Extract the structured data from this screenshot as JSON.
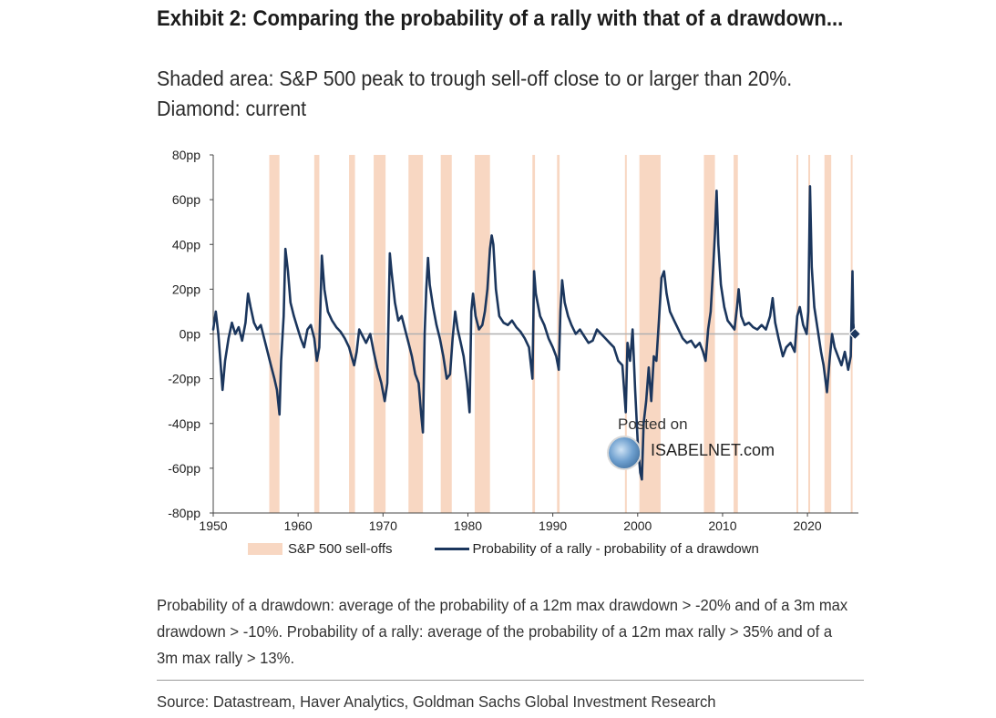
{
  "title": "Exhibit 2: Comparing the probability of a rally with that of a drawdown...",
  "subtitle": "Shaded area: S&P 500 peak to trough sell-off close to or larger than 20%. Diamond: current",
  "note": "Probability of a drawdown: average of the probability of a 12m max drawdown > -20% and of a 3m max drawdown > -10%. Probability of a rally: average of the probability of a 12m max rally > 35% and of a 3m max rally > 13%.",
  "source": "Source: Datastream, Haver Analytics, Goldman Sachs Global Investment Research",
  "watermark": {
    "posted": "Posted on",
    "site": "ISABELNET.com"
  },
  "colors": {
    "line": "#1b365d",
    "shade": "#f8d7c2",
    "zero_line": "#b0b0b0",
    "axis": "#444444"
  },
  "chart_data": {
    "type": "line",
    "title": "",
    "xlabel": "",
    "ylabel": "",
    "xlim": [
      1950,
      2026
    ],
    "ylim": [
      -80,
      80
    ],
    "x_ticks": [
      1950,
      1960,
      1970,
      1980,
      1990,
      2000,
      2010,
      2020
    ],
    "x_tick_labels": [
      "1950",
      "1960",
      "1970",
      "1980",
      "1990",
      "2000",
      "2010",
      "2020"
    ],
    "y_ticks": [
      -80,
      -60,
      -40,
      -20,
      0,
      20,
      40,
      60,
      80
    ],
    "y_tick_labels": [
      "-80pp",
      "-60pp",
      "-40pp",
      "-20pp",
      "0pp",
      "20pp",
      "40pp",
      "60pp",
      "80pp"
    ],
    "grid": false,
    "legend_position": "bottom",
    "legend": [
      "S&P 500 sell-offs",
      "Probability of a rally - probability of a drawdown"
    ],
    "shaded_periods": [
      [
        1956.6,
        1957.8
      ],
      [
        1961.9,
        1962.5
      ],
      [
        1966.0,
        1966.7
      ],
      [
        1968.9,
        1970.3
      ],
      [
        1973.0,
        1974.7
      ],
      [
        1976.8,
        1978.1
      ],
      [
        1980.8,
        1982.6
      ],
      [
        1987.6,
        1987.9
      ],
      [
        1990.5,
        1990.8
      ],
      [
        1998.5,
        1998.7
      ],
      [
        2000.2,
        2002.7
      ],
      [
        2007.8,
        2009.1
      ],
      [
        2011.3,
        2011.8
      ],
      [
        2018.7,
        2018.9
      ],
      [
        2020.1,
        2020.3
      ],
      [
        2022.0,
        2022.8
      ],
      [
        2025.1,
        2025.3
      ]
    ],
    "series": [
      {
        "name": "Probability of a rally - probability of a drawdown",
        "points": [
          [
            1950.0,
            2
          ],
          [
            1950.3,
            10
          ],
          [
            1950.6,
            0
          ],
          [
            1950.9,
            -15
          ],
          [
            1951.1,
            -25
          ],
          [
            1951.4,
            -12
          ],
          [
            1951.8,
            -2
          ],
          [
            1952.2,
            5
          ],
          [
            1952.6,
            0
          ],
          [
            1953.0,
            3
          ],
          [
            1953.4,
            -3
          ],
          [
            1953.8,
            5
          ],
          [
            1954.1,
            18
          ],
          [
            1954.4,
            12
          ],
          [
            1954.8,
            5
          ],
          [
            1955.2,
            2
          ],
          [
            1955.6,
            4
          ],
          [
            1956.0,
            -2
          ],
          [
            1956.4,
            -8
          ],
          [
            1956.8,
            -14
          ],
          [
            1957.2,
            -20
          ],
          [
            1957.5,
            -25
          ],
          [
            1957.8,
            -36
          ],
          [
            1958.0,
            -12
          ],
          [
            1958.3,
            8
          ],
          [
            1958.5,
            38
          ],
          [
            1958.8,
            28
          ],
          [
            1959.1,
            14
          ],
          [
            1959.5,
            8
          ],
          [
            1959.9,
            3
          ],
          [
            1960.3,
            -2
          ],
          [
            1960.7,
            -6
          ],
          [
            1961.1,
            2
          ],
          [
            1961.5,
            4
          ],
          [
            1961.9,
            -2
          ],
          [
            1962.2,
            -12
          ],
          [
            1962.5,
            -6
          ],
          [
            1962.8,
            35
          ],
          [
            1963.1,
            20
          ],
          [
            1963.5,
            10
          ],
          [
            1964.0,
            6
          ],
          [
            1964.5,
            3
          ],
          [
            1965.0,
            1
          ],
          [
            1965.5,
            -2
          ],
          [
            1966.0,
            -6
          ],
          [
            1966.3,
            -10
          ],
          [
            1966.6,
            -14
          ],
          [
            1966.9,
            -8
          ],
          [
            1967.2,
            2
          ],
          [
            1967.6,
            -1
          ],
          [
            1968.0,
            -4
          ],
          [
            1968.5,
            0
          ],
          [
            1968.9,
            -8
          ],
          [
            1969.3,
            -15
          ],
          [
            1969.8,
            -22
          ],
          [
            1970.2,
            -30
          ],
          [
            1970.5,
            -22
          ],
          [
            1970.8,
            36
          ],
          [
            1971.0,
            28
          ],
          [
            1971.4,
            14
          ],
          [
            1971.8,
            6
          ],
          [
            1972.2,
            8
          ],
          [
            1972.6,
            2
          ],
          [
            1973.0,
            -4
          ],
          [
            1973.4,
            -10
          ],
          [
            1973.8,
            -18
          ],
          [
            1974.2,
            -22
          ],
          [
            1974.5,
            -36
          ],
          [
            1974.7,
            -44
          ],
          [
            1974.9,
            0
          ],
          [
            1975.1,
            20
          ],
          [
            1975.3,
            34
          ],
          [
            1975.5,
            22
          ],
          [
            1975.9,
            12
          ],
          [
            1976.3,
            4
          ],
          [
            1976.7,
            -2
          ],
          [
            1977.1,
            -10
          ],
          [
            1977.5,
            -20
          ],
          [
            1977.9,
            -18
          ],
          [
            1978.2,
            -2
          ],
          [
            1978.5,
            10
          ],
          [
            1978.8,
            2
          ],
          [
            1979.1,
            -3
          ],
          [
            1979.5,
            -10
          ],
          [
            1979.9,
            -22
          ],
          [
            1980.2,
            -35
          ],
          [
            1980.4,
            10
          ],
          [
            1980.6,
            18
          ],
          [
            1980.9,
            8
          ],
          [
            1981.3,
            2
          ],
          [
            1981.7,
            4
          ],
          [
            1982.0,
            10
          ],
          [
            1982.3,
            20
          ],
          [
            1982.6,
            38
          ],
          [
            1982.8,
            44
          ],
          [
            1983.0,
            40
          ],
          [
            1983.3,
            20
          ],
          [
            1983.7,
            8
          ],
          [
            1984.2,
            5
          ],
          [
            1984.7,
            4
          ],
          [
            1985.2,
            6
          ],
          [
            1985.7,
            3
          ],
          [
            1986.2,
            1
          ],
          [
            1986.7,
            -2
          ],
          [
            1987.2,
            -6
          ],
          [
            1987.6,
            -20
          ],
          [
            1987.8,
            28
          ],
          [
            1988.0,
            18
          ],
          [
            1988.5,
            8
          ],
          [
            1989.0,
            4
          ],
          [
            1989.5,
            -2
          ],
          [
            1990.0,
            -6
          ],
          [
            1990.4,
            -10
          ],
          [
            1990.7,
            -16
          ],
          [
            1990.9,
            10
          ],
          [
            1991.1,
            24
          ],
          [
            1991.4,
            14
          ],
          [
            1991.8,
            8
          ],
          [
            1992.2,
            4
          ],
          [
            1992.7,
            0
          ],
          [
            1993.2,
            2
          ],
          [
            1993.7,
            -1
          ],
          [
            1994.2,
            -4
          ],
          [
            1994.7,
            -3
          ],
          [
            1995.2,
            2
          ],
          [
            1995.7,
            0
          ],
          [
            1996.2,
            -2
          ],
          [
            1996.7,
            -4
          ],
          [
            1997.2,
            -6
          ],
          [
            1997.7,
            -12
          ],
          [
            1998.2,
            -14
          ],
          [
            1998.6,
            -35
          ],
          [
            1998.8,
            -4
          ],
          [
            1999.1,
            -12
          ],
          [
            1999.4,
            2
          ],
          [
            1999.7,
            -25
          ],
          [
            2000.0,
            -48
          ],
          [
            2000.3,
            -62
          ],
          [
            2000.5,
            -65
          ],
          [
            2000.7,
            -40
          ],
          [
            2001.0,
            -30
          ],
          [
            2001.3,
            -15
          ],
          [
            2001.6,
            -30
          ],
          [
            2001.9,
            -10
          ],
          [
            2002.2,
            -12
          ],
          [
            2002.5,
            6
          ],
          [
            2002.8,
            25
          ],
          [
            2003.1,
            28
          ],
          [
            2003.4,
            18
          ],
          [
            2003.8,
            10
          ],
          [
            2004.3,
            6
          ],
          [
            2004.8,
            2
          ],
          [
            2005.3,
            -2
          ],
          [
            2005.8,
            -4
          ],
          [
            2006.3,
            -3
          ],
          [
            2006.8,
            -6
          ],
          [
            2007.3,
            -4
          ],
          [
            2007.7,
            -8
          ],
          [
            2008.0,
            -12
          ],
          [
            2008.3,
            2
          ],
          [
            2008.6,
            10
          ],
          [
            2008.9,
            30
          ],
          [
            2009.1,
            45
          ],
          [
            2009.3,
            64
          ],
          [
            2009.5,
            40
          ],
          [
            2009.8,
            22
          ],
          [
            2010.2,
            12
          ],
          [
            2010.6,
            6
          ],
          [
            2011.0,
            4
          ],
          [
            2011.4,
            2
          ],
          [
            2011.7,
            12
          ],
          [
            2011.9,
            20
          ],
          [
            2012.2,
            8
          ],
          [
            2012.6,
            4
          ],
          [
            2013.1,
            5
          ],
          [
            2013.6,
            3
          ],
          [
            2014.1,
            2
          ],
          [
            2014.6,
            4
          ],
          [
            2015.1,
            2
          ],
          [
            2015.6,
            8
          ],
          [
            2015.9,
            16
          ],
          [
            2016.2,
            5
          ],
          [
            2016.6,
            -2
          ],
          [
            2017.1,
            -10
          ],
          [
            2017.5,
            -6
          ],
          [
            2018.0,
            -4
          ],
          [
            2018.5,
            -8
          ],
          [
            2018.8,
            8
          ],
          [
            2019.1,
            12
          ],
          [
            2019.5,
            4
          ],
          [
            2019.9,
            0
          ],
          [
            2020.1,
            10
          ],
          [
            2020.3,
            66
          ],
          [
            2020.5,
            30
          ],
          [
            2020.8,
            12
          ],
          [
            2021.2,
            2
          ],
          [
            2021.6,
            -8
          ],
          [
            2021.9,
            -14
          ],
          [
            2022.3,
            -26
          ],
          [
            2022.6,
            -12
          ],
          [
            2022.9,
            0
          ],
          [
            2023.2,
            -6
          ],
          [
            2023.6,
            -10
          ],
          [
            2024.0,
            -14
          ],
          [
            2024.4,
            -8
          ],
          [
            2024.8,
            -16
          ],
          [
            2025.1,
            -10
          ],
          [
            2025.3,
            28
          ],
          [
            2025.4,
            5
          ],
          [
            2025.5,
            0
          ]
        ]
      }
    ],
    "current": {
      "x": 2025.6,
      "y": 0,
      "marker": "diamond"
    }
  }
}
